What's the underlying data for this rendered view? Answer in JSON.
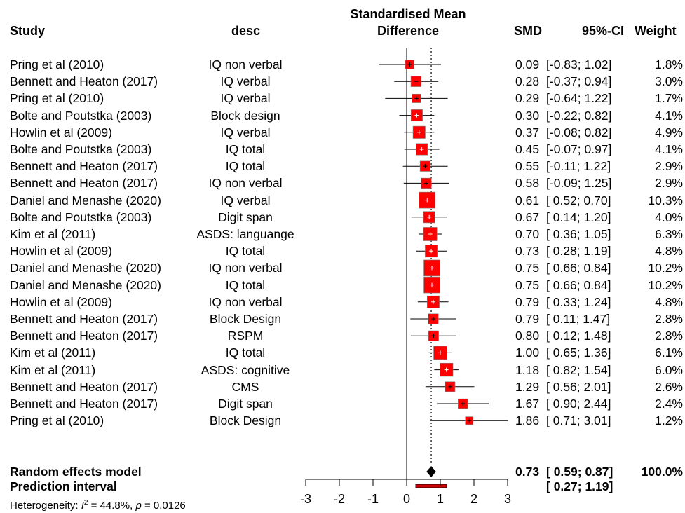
{
  "chart_data": {
    "type": "forest",
    "title": "Standardised Mean Difference",
    "headers": {
      "study": "Study",
      "desc": "desc",
      "plot_line1": "Standardised Mean",
      "plot_line2": "Difference",
      "smd": "SMD",
      "ci": "95%-CI",
      "weight": "Weight"
    },
    "studies": [
      {
        "study": "Pring et al (2010)",
        "desc": "IQ non verbal",
        "smd": 0.09,
        "lower": -0.83,
        "upper": 1.02,
        "smd_text": "0.09",
        "ci_text": "[-0.83; 1.02]",
        "weight": 1.8,
        "weight_text": "1.8%"
      },
      {
        "study": "Bennett and Heaton (2017)",
        "desc": "IQ verbal",
        "smd": 0.28,
        "lower": -0.37,
        "upper": 0.94,
        "smd_text": "0.28",
        "ci_text": "[-0.37; 0.94]",
        "weight": 3.0,
        "weight_text": "3.0%"
      },
      {
        "study": "Pring et al (2010)",
        "desc": "IQ verbal",
        "smd": 0.29,
        "lower": -0.64,
        "upper": 1.22,
        "smd_text": "0.29",
        "ci_text": "[-0.64; 1.22]",
        "weight": 1.7,
        "weight_text": "1.7%"
      },
      {
        "study": "Bolte and Poutstka (2003)",
        "desc": "Block design",
        "smd": 0.3,
        "lower": -0.22,
        "upper": 0.82,
        "smd_text": "0.30",
        "ci_text": "[-0.22; 0.82]",
        "weight": 4.1,
        "weight_text": "4.1%"
      },
      {
        "study": "Howlin et al (2009)",
        "desc": "IQ verbal",
        "smd": 0.37,
        "lower": -0.08,
        "upper": 0.82,
        "smd_text": "0.37",
        "ci_text": "[-0.08; 0.82]",
        "weight": 4.9,
        "weight_text": "4.9%"
      },
      {
        "study": "Bolte and Poutstka (2003)",
        "desc": "IQ total",
        "smd": 0.45,
        "lower": -0.07,
        "upper": 0.97,
        "smd_text": "0.45",
        "ci_text": "[-0.07; 0.97]",
        "weight": 4.1,
        "weight_text": "4.1%"
      },
      {
        "study": "Bennett and Heaton (2017)",
        "desc": "IQ total",
        "smd": 0.55,
        "lower": -0.11,
        "upper": 1.22,
        "smd_text": "0.55",
        "ci_text": "[-0.11; 1.22]",
        "weight": 2.9,
        "weight_text": "2.9%"
      },
      {
        "study": "Bennett and Heaton (2017)",
        "desc": "IQ non verbal",
        "smd": 0.58,
        "lower": -0.09,
        "upper": 1.25,
        "smd_text": "0.58",
        "ci_text": "[-0.09; 1.25]",
        "weight": 2.9,
        "weight_text": "2.9%"
      },
      {
        "study": "Daniel and Menashe (2020)",
        "desc": "IQ verbal",
        "smd": 0.61,
        "lower": 0.52,
        "upper": 0.7,
        "smd_text": "0.61",
        "ci_text": "[ 0.52; 0.70]",
        "weight": 10.3,
        "weight_text": "10.3%"
      },
      {
        "study": "Bolte and Poutstka (2003)",
        "desc": "Digit span",
        "smd": 0.67,
        "lower": 0.14,
        "upper": 1.2,
        "smd_text": "0.67",
        "ci_text": "[ 0.14; 1.20]",
        "weight": 4.0,
        "weight_text": "4.0%"
      },
      {
        "study": "Kim et al (2011)",
        "desc": "ASDS: languange",
        "smd": 0.7,
        "lower": 0.36,
        "upper": 1.05,
        "smd_text": "0.70",
        "ci_text": "[ 0.36; 1.05]",
        "weight": 6.3,
        "weight_text": "6.3%"
      },
      {
        "study": "Howlin et al (2009)",
        "desc": "IQ total",
        "smd": 0.73,
        "lower": 0.28,
        "upper": 1.19,
        "smd_text": "0.73",
        "ci_text": "[ 0.28; 1.19]",
        "weight": 4.8,
        "weight_text": "4.8%"
      },
      {
        "study": "Daniel and Menashe (2020)",
        "desc": "IQ non verbal",
        "smd": 0.75,
        "lower": 0.66,
        "upper": 0.84,
        "smd_text": "0.75",
        "ci_text": "[ 0.66; 0.84]",
        "weight": 10.2,
        "weight_text": "10.2%"
      },
      {
        "study": "Daniel and Menashe (2020)",
        "desc": "IQ total",
        "smd": 0.75,
        "lower": 0.66,
        "upper": 0.84,
        "smd_text": "0.75",
        "ci_text": "[ 0.66; 0.84]",
        "weight": 10.2,
        "weight_text": "10.2%"
      },
      {
        "study": "Howlin et al (2009)",
        "desc": "IQ non verbal",
        "smd": 0.79,
        "lower": 0.33,
        "upper": 1.24,
        "smd_text": "0.79",
        "ci_text": "[ 0.33; 1.24]",
        "weight": 4.8,
        "weight_text": "4.8%"
      },
      {
        "study": "Bennett and Heaton (2017)",
        "desc": "Block Design",
        "smd": 0.79,
        "lower": 0.11,
        "upper": 1.47,
        "smd_text": "0.79",
        "ci_text": "[ 0.11; 1.47]",
        "weight": 2.8,
        "weight_text": "2.8%"
      },
      {
        "study": "Bennett and Heaton (2017)",
        "desc": "RSPM",
        "smd": 0.8,
        "lower": 0.12,
        "upper": 1.48,
        "smd_text": "0.80",
        "ci_text": "[ 0.12; 1.48]",
        "weight": 2.8,
        "weight_text": "2.8%"
      },
      {
        "study": "Kim et al (2011)",
        "desc": "IQ total",
        "smd": 1.0,
        "lower": 0.65,
        "upper": 1.36,
        "smd_text": "1.00",
        "ci_text": "[ 0.65; 1.36]",
        "weight": 6.1,
        "weight_text": "6.1%"
      },
      {
        "study": "Kim et al (2011)",
        "desc": "ASDS: cognitive",
        "smd": 1.18,
        "lower": 0.82,
        "upper": 1.54,
        "smd_text": "1.18",
        "ci_text": "[ 0.82; 1.54]",
        "weight": 6.0,
        "weight_text": "6.0%"
      },
      {
        "study": "Bennett and Heaton (2017)",
        "desc": "CMS",
        "smd": 1.29,
        "lower": 0.56,
        "upper": 2.01,
        "smd_text": "1.29",
        "ci_text": "[ 0.56; 2.01]",
        "weight": 2.6,
        "weight_text": "2.6%"
      },
      {
        "study": "Bennett and Heaton (2017)",
        "desc": "Digit span",
        "smd": 1.67,
        "lower": 0.9,
        "upper": 2.44,
        "smd_text": "1.67",
        "ci_text": "[ 0.90; 2.44]",
        "weight": 2.4,
        "weight_text": "2.4%"
      },
      {
        "study": "Pring et al (2010)",
        "desc": "Block Design",
        "smd": 1.86,
        "lower": 0.71,
        "upper": 3.01,
        "smd_text": "1.86",
        "ci_text": "[ 0.71; 3.01]",
        "weight": 1.2,
        "weight_text": "1.2%"
      }
    ],
    "random_effects": {
      "label": "Random effects model",
      "smd": 0.73,
      "lower": 0.59,
      "upper": 0.87,
      "smd_text": "0.73",
      "ci_text": "[ 0.59; 0.87]",
      "weight_text": "100.0%"
    },
    "prediction_interval": {
      "label": "Prediction interval",
      "lower": 0.27,
      "upper": 1.19,
      "ci_text": "[ 0.27; 1.19]"
    },
    "heterogeneity": {
      "prefix": "Heterogeneity: ",
      "i2_symbol": "I",
      "i2_exponent": "2",
      "i2_value": " = 44.8%, ",
      "p_symbol": "p",
      "p_value": " = 0.0126"
    },
    "x_axis": {
      "range": [
        -3,
        3
      ],
      "ticks": [
        -3,
        -2,
        -1,
        0,
        1,
        2,
        3
      ],
      "tick_labels": [
        "-3",
        "-2",
        "-1",
        "0",
        "1",
        "2",
        "3"
      ]
    },
    "colors": {
      "square": "#ff0000",
      "square_border": "#808080",
      "diamond": "#000000",
      "prediction": "#cc0000",
      "lines": "#000000"
    }
  }
}
